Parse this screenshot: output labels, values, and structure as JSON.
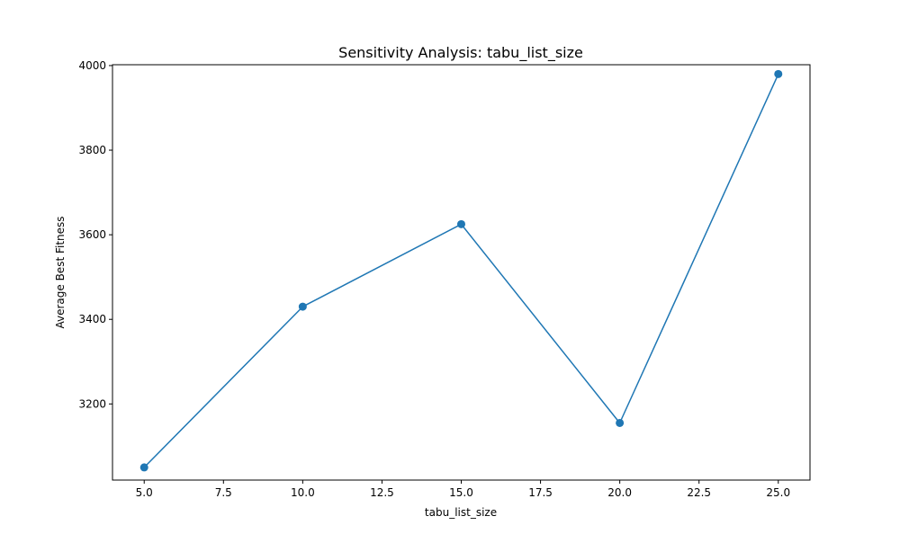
{
  "chart_data": {
    "type": "line",
    "title": "Sensitivity Analysis: tabu_list_size",
    "xlabel": "tabu_list_size",
    "ylabel": "Average Best Fitness",
    "x": [
      5,
      10,
      15,
      20,
      25
    ],
    "series": [
      {
        "values": [
          3050,
          3430,
          3625,
          3155,
          3980
        ]
      }
    ],
    "xlim": [
      4,
      26
    ],
    "ylim": [
      3020,
      4002
    ],
    "xticks": [
      "5.0",
      "7.5",
      "10.0",
      "12.5",
      "15.0",
      "17.5",
      "20.0",
      "22.5",
      "25.0"
    ],
    "yticks": [
      "3200",
      "3400",
      "3600",
      "3800",
      "4000"
    ],
    "grid": false,
    "markers": true
  },
  "colors": {
    "line": "#1f77b4",
    "axes": "#000000",
    "background": "#ffffff"
  }
}
